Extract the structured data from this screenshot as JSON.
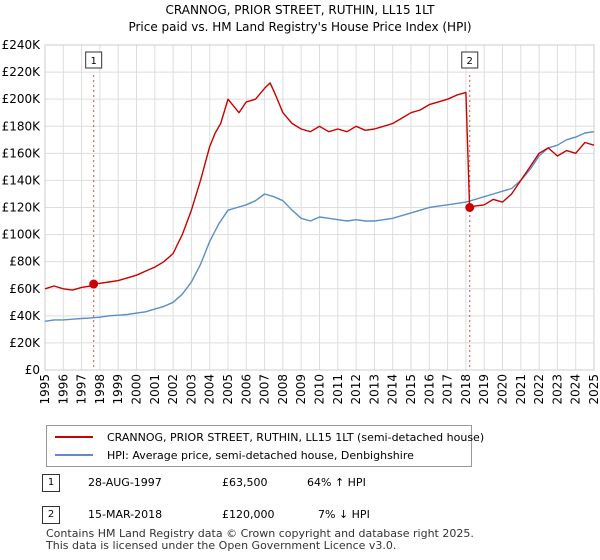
{
  "chart_data": {
    "type": "line",
    "title": "CRANNOG, PRIOR STREET, RUTHIN, LL15 1LT",
    "subtitle": "Price paid vs. HM Land Registry's House Price Index (HPI)",
    "xlabel": "",
    "ylabel": "",
    "xlim": [
      1995,
      2025
    ],
    "ylim": [
      0,
      240000
    ],
    "grid": true,
    "x_ticks": [
      "1995",
      "1996",
      "1997",
      "1998",
      "1999",
      "2000",
      "2001",
      "2002",
      "2003",
      "2004",
      "2005",
      "2006",
      "2007",
      "2008",
      "2009",
      "2010",
      "2011",
      "2012",
      "2013",
      "2014",
      "2015",
      "2016",
      "2017",
      "2018",
      "2019",
      "2020",
      "2021",
      "2022",
      "2023",
      "2024",
      "2025"
    ],
    "y_ticks": [
      "£0",
      "£20K",
      "£40K",
      "£60K",
      "£80K",
      "£100K",
      "£120K",
      "£140K",
      "£160K",
      "£180K",
      "£200K",
      "£220K",
      "£240K"
    ],
    "series": [
      {
        "name": "CRANNOG, PRIOR STREET, RUTHIN, LL15 1LT (semi-detached house)",
        "color": "#cc0000",
        "x": [
          1995.0,
          1995.5,
          1996.0,
          1996.5,
          1997.0,
          1997.5,
          1997.66,
          1998.0,
          1998.5,
          1999.0,
          1999.5,
          2000.0,
          2000.5,
          2001.0,
          2001.5,
          2002.0,
          2002.5,
          2003.0,
          2003.5,
          2004.0,
          2004.3,
          2004.6,
          2005.0,
          2005.3,
          2005.6,
          2006.0,
          2006.5,
          2007.0,
          2007.3,
          2007.6,
          2008.0,
          2008.5,
          2009.0,
          2009.5,
          2010.0,
          2010.5,
          2011.0,
          2011.5,
          2012.0,
          2012.5,
          2013.0,
          2013.5,
          2014.0,
          2014.5,
          2015.0,
          2015.5,
          2016.0,
          2016.5,
          2017.0,
          2017.5,
          2018.0,
          2018.2,
          2018.5,
          2019.0,
          2019.5,
          2020.0,
          2020.5,
          2021.0,
          2021.5,
          2022.0,
          2022.5,
          2023.0,
          2023.5,
          2024.0,
          2024.5,
          2025.0
        ],
        "values": [
          60000,
          62000,
          60000,
          59000,
          61000,
          62000,
          63500,
          64000,
          65000,
          66000,
          68000,
          70000,
          73000,
          76000,
          80000,
          86000,
          100000,
          118000,
          140000,
          165000,
          175000,
          182000,
          200000,
          195000,
          190000,
          198000,
          200000,
          208000,
          212000,
          203000,
          190000,
          182000,
          178000,
          176000,
          180000,
          176000,
          178000,
          176000,
          180000,
          177000,
          178000,
          180000,
          182000,
          186000,
          190000,
          192000,
          196000,
          198000,
          200000,
          203000,
          205000,
          120000,
          121000,
          122000,
          126000,
          124000,
          130000,
          140000,
          150000,
          160000,
          164000,
          158000,
          162000,
          160000,
          168000,
          166000
        ]
      },
      {
        "name": "HPI: Average price, semi-detached house, Denbighshire",
        "color": "#5b8ec9",
        "x": [
          1995.0,
          1995.5,
          1996.0,
          1996.5,
          1997.0,
          1997.5,
          1998.0,
          1998.5,
          1999.0,
          1999.5,
          2000.0,
          2000.5,
          2001.0,
          2001.5,
          2002.0,
          2002.5,
          2003.0,
          2003.5,
          2004.0,
          2004.5,
          2005.0,
          2005.5,
          2006.0,
          2006.5,
          2007.0,
          2007.5,
          2008.0,
          2008.5,
          2009.0,
          2009.5,
          2010.0,
          2010.5,
          2011.0,
          2011.5,
          2012.0,
          2012.5,
          2013.0,
          2013.5,
          2014.0,
          2014.5,
          2015.0,
          2015.5,
          2016.0,
          2016.5,
          2017.0,
          2017.5,
          2018.0,
          2018.5,
          2019.0,
          2019.5,
          2020.0,
          2020.5,
          2021.0,
          2021.5,
          2022.0,
          2022.5,
          2023.0,
          2023.5,
          2024.0,
          2024.5,
          2025.0
        ],
        "values": [
          36000,
          37000,
          37000,
          37500,
          38000,
          38500,
          39000,
          40000,
          40500,
          41000,
          42000,
          43000,
          45000,
          47000,
          50000,
          56000,
          65000,
          78000,
          95000,
          108000,
          118000,
          120000,
          122000,
          125000,
          130000,
          128000,
          125000,
          118000,
          112000,
          110000,
          113000,
          112000,
          111000,
          110000,
          111000,
          110000,
          110000,
          111000,
          112000,
          114000,
          116000,
          118000,
          120000,
          121000,
          122000,
          123000,
          124000,
          126000,
          128000,
          130000,
          132000,
          134000,
          140000,
          148000,
          158000,
          164000,
          166000,
          170000,
          172000,
          175000,
          176000
        ]
      }
    ],
    "sales": [
      {
        "label": "1",
        "x": 1997.66,
        "value": 63500
      },
      {
        "label": "2",
        "x": 2018.21,
        "value": 120000
      }
    ]
  },
  "legend": {
    "property_label": "CRANNOG, PRIOR STREET, RUTHIN, LL15 1LT (semi-detached house)",
    "hpi_label": "HPI: Average price, semi-detached house, Denbighshire"
  },
  "transactions": [
    {
      "num": "1",
      "date": "28-AUG-1997",
      "price": "£63,500",
      "hpi": "64% ↑ HPI"
    },
    {
      "num": "2",
      "date": "15-MAR-2018",
      "price": "£120,000",
      "hpi": "7% ↓ HPI"
    }
  ],
  "footer": {
    "line1": "Contains HM Land Registry data © Crown copyright and database right 2025.",
    "line2": "This data is licensed under the Open Government Licence v3.0."
  },
  "colors": {
    "property": "#cc0000",
    "hpi": "#5b8ec9",
    "grid": "#dddddd",
    "marker_line": "#cc0000"
  }
}
